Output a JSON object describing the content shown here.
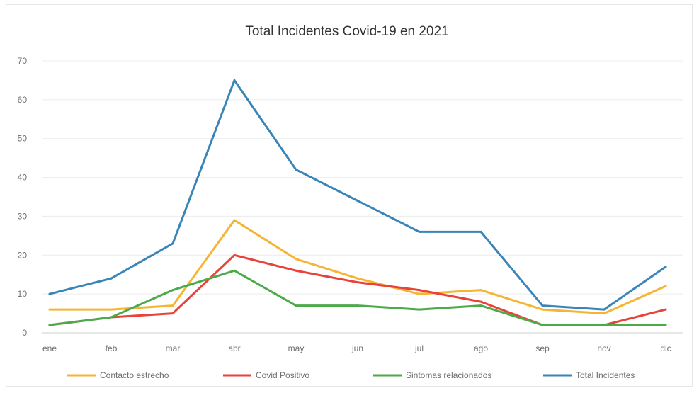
{
  "chart_data": {
    "type": "line",
    "title": "Total Incidentes Covid-19 en 2021",
    "categories": [
      "ene",
      "feb",
      "mar",
      "abr",
      "may",
      "jun",
      "jul",
      "ago",
      "sep",
      "nov",
      "dic"
    ],
    "ylim": [
      0,
      70
    ],
    "yticks": [
      0,
      10,
      20,
      30,
      40,
      50,
      60,
      70
    ],
    "grid": true,
    "legend_position": "bottom",
    "series": [
      {
        "name": "Contacto estrecho",
        "color": "#f5b533",
        "values": [
          6,
          6,
          7,
          29,
          19,
          14,
          10,
          11,
          6,
          5,
          12
        ]
      },
      {
        "name": "Covid Positivo",
        "color": "#e8423a",
        "values": [
          2,
          4,
          5,
          20,
          16,
          13,
          11,
          8,
          2,
          2,
          6
        ]
      },
      {
        "name": "Sintomas relacionados",
        "color": "#4caa4a",
        "values": [
          2,
          4,
          11,
          16,
          7,
          7,
          6,
          7,
          2,
          2,
          2
        ]
      },
      {
        "name": "Total Incidentes",
        "color": "#3a85b8",
        "values": [
          10,
          14,
          23,
          65,
          42,
          34,
          26,
          26,
          7,
          6,
          17
        ]
      }
    ]
  }
}
